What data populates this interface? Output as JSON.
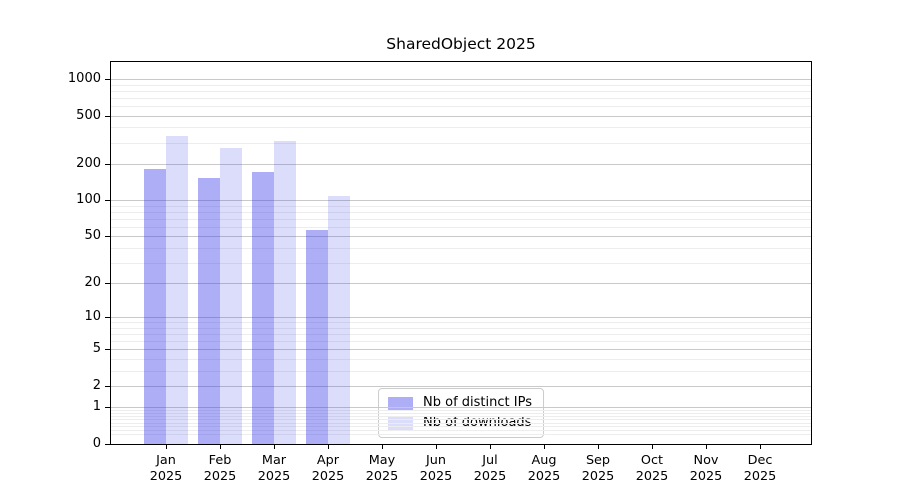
{
  "chart_data": {
    "type": "bar",
    "title": "SharedObject 2025",
    "year": "2025",
    "months": [
      "Jan",
      "Feb",
      "Mar",
      "Apr",
      "May",
      "Jun",
      "Jul",
      "Aug",
      "Sep",
      "Oct",
      "Nov",
      "Dec"
    ],
    "series": [
      {
        "name": "Nb of distinct IPs",
        "color": "rgba(62,62,235,0.42)",
        "values": [
          180,
          152,
          170,
          57,
          null,
          null,
          null,
          null,
          null,
          null,
          null,
          null
        ]
      },
      {
        "name": "Nb of downloads",
        "color": "rgba(62,62,235,0.18)",
        "values": [
          338,
          268,
          308,
          109,
          null,
          null,
          null,
          null,
          null,
          null,
          null,
          null
        ]
      }
    ],
    "y_axis": {
      "ticks": [
        0,
        1,
        2,
        5,
        10,
        20,
        50,
        100,
        200,
        500,
        1000
      ],
      "tick_labels": [
        "0",
        "1",
        "2",
        "5",
        "10",
        "20",
        "50",
        "100",
        "200",
        "500",
        "1000"
      ],
      "scale": "log10(value+1)",
      "range": [
        0,
        1380
      ]
    },
    "x_axis": {
      "label_line2": "2025"
    },
    "legend": {
      "position": "bottom-center",
      "entries": [
        "Nb of distinct IPs",
        "Nb of downloads"
      ]
    },
    "grid": {
      "major_color": "#c9c9c9",
      "minor_color": "#ededed"
    }
  }
}
